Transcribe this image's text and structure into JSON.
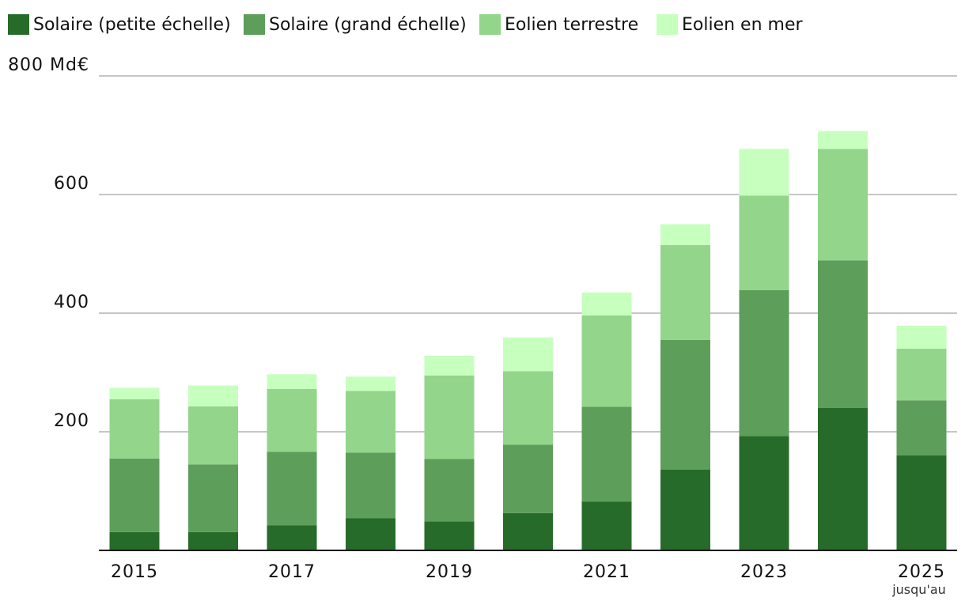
{
  "chart_data": {
    "type": "bar",
    "stacked": true,
    "categories": [
      "2015",
      "2016",
      "2017",
      "2018",
      "2019",
      "2020",
      "2021",
      "2022",
      "2023",
      "2024",
      "2025"
    ],
    "x_tick_labels": [
      "2015",
      "2017",
      "2019",
      "2021",
      "2023",
      "2025"
    ],
    "x_note": "jusqu'au",
    "y_tick_labels": [
      "800 Md€",
      "600",
      "400",
      "200"
    ],
    "y_ticks": [
      800,
      600,
      400,
      200
    ],
    "ylim": [
      0,
      800
    ],
    "grid": true,
    "legend_position": "top-left",
    "series": [
      {
        "name": "Solaire (petite échelle)",
        "color": "#276b2a",
        "values": [
          31,
          31,
          42,
          54,
          49,
          63,
          82,
          136,
          193,
          240,
          160
        ]
      },
      {
        "name": "Solaire (grand échelle)",
        "color": "#5c9e5a",
        "values": [
          124,
          114,
          124,
          111,
          105,
          115,
          160,
          219,
          246,
          249,
          93
        ]
      },
      {
        "name": "Eolien terrestre",
        "color": "#93d58b",
        "values": [
          100,
          98,
          106,
          104,
          141,
          124,
          154,
          160,
          159,
          188,
          87
        ]
      },
      {
        "name": "Eolien en mer",
        "color": "#c7ffbf",
        "values": [
          19,
          35,
          25,
          24,
          33,
          57,
          39,
          35,
          79,
          30,
          39
        ]
      }
    ]
  }
}
